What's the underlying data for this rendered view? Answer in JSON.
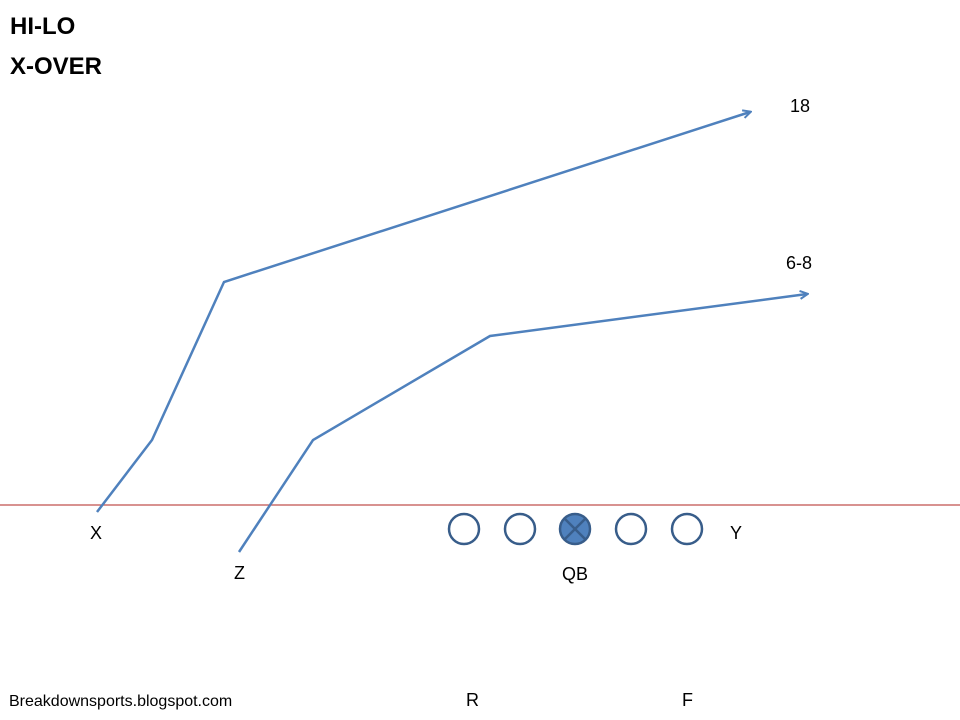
{
  "title_lines": [
    "HI-LO",
    "X-OVER"
  ],
  "footer": "Breakdownsports.blogspot.com",
  "colors": {
    "route": "#4f81bd",
    "line_of_scrimmage": "#c0504d",
    "lineman_stroke": "#385d8a",
    "qb_fill": "#4f81bd"
  },
  "players": {
    "x": "X",
    "z": "Z",
    "y": "Y",
    "qb": "QB",
    "r": "R",
    "f": "F"
  },
  "routes": {
    "x_depth": "18",
    "z_depth": "6-8"
  }
}
